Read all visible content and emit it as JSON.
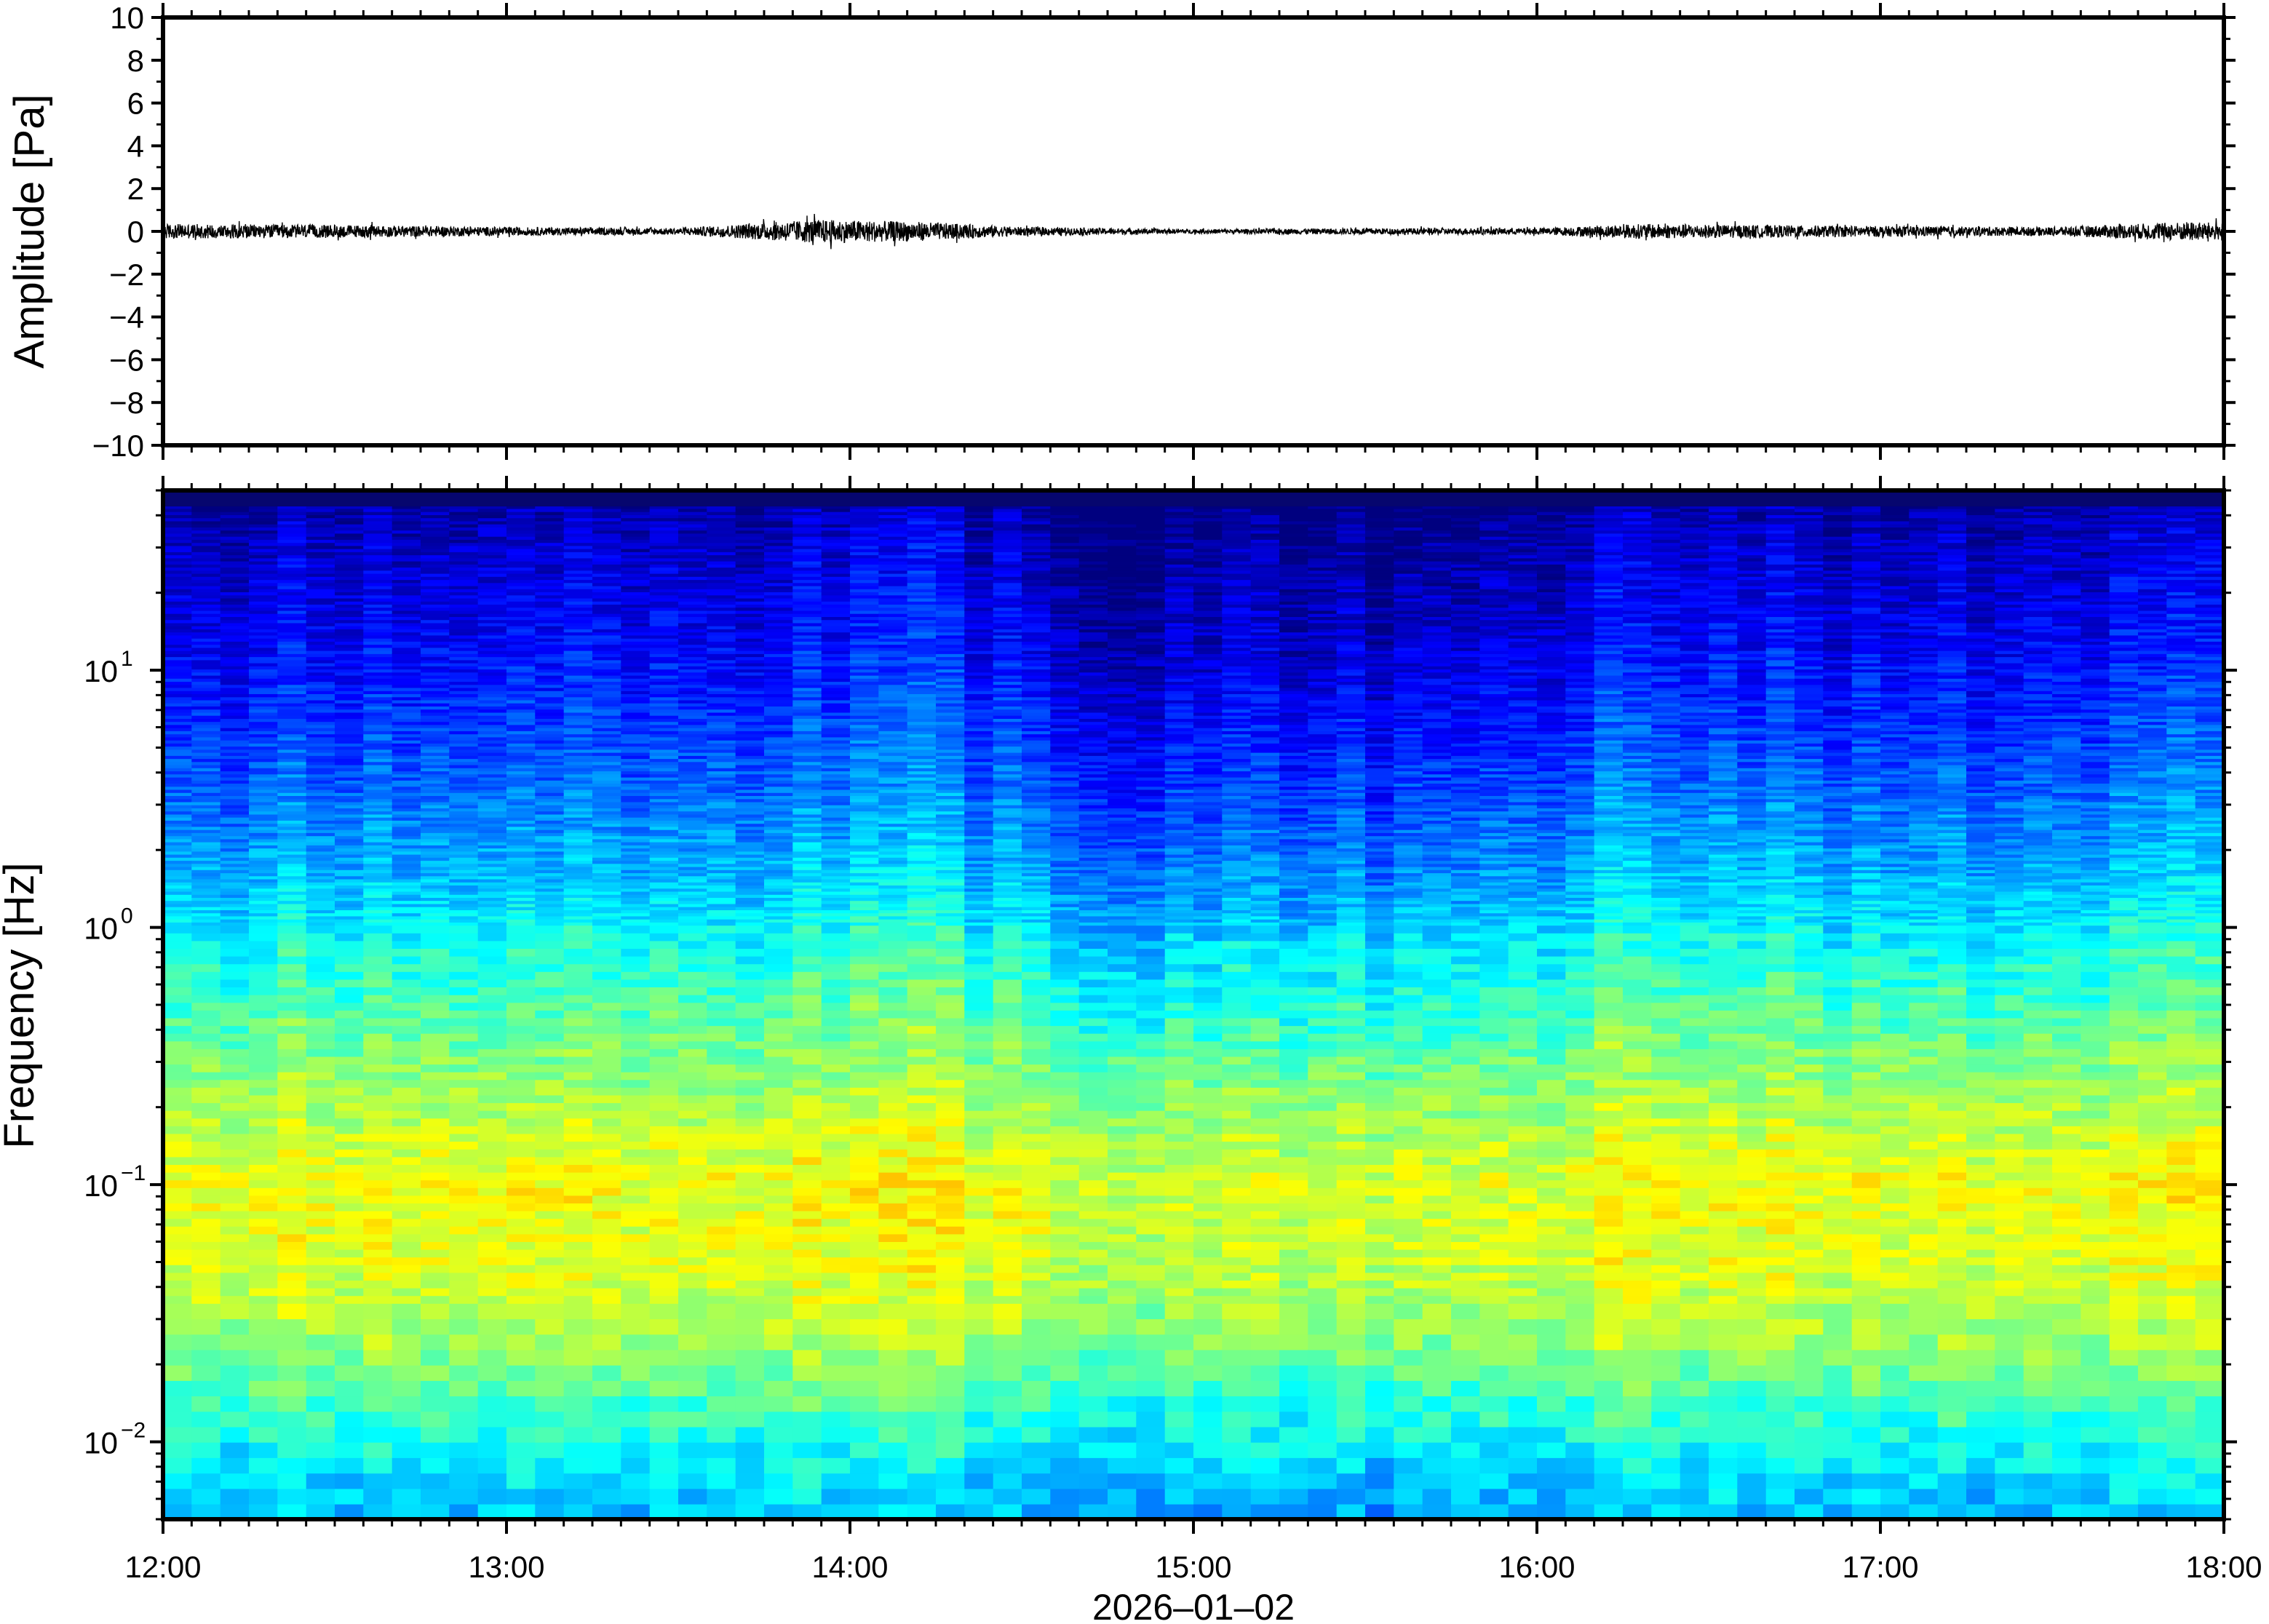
{
  "chart_data": [
    {
      "type": "line",
      "title": "",
      "ylabel": "Amplitude [Pa]",
      "xlabel": "",
      "ylim": [
        -10,
        10
      ],
      "yticks": [
        10,
        8,
        6,
        4,
        2,
        0,
        -2,
        -4,
        -6,
        -8,
        -10
      ],
      "ytick_labels": [
        "10",
        "8",
        "6",
        "4",
        "2",
        "0",
        "−2",
        "−4",
        "−6",
        "−8",
        "−10"
      ],
      "xlim": [
        "12:00",
        "18:00"
      ],
      "grid": false,
      "legend": "none",
      "series": [
        {
          "color": "#000000",
          "x_hours": [
            12.0,
            12.5,
            13.0,
            13.5,
            13.9,
            14.2,
            14.5,
            15.0,
            15.5,
            16.0,
            16.3,
            16.6,
            17.0,
            17.5,
            17.9,
            18.0
          ],
          "envelope_pa": [
            0.35,
            0.3,
            0.2,
            0.15,
            0.55,
            0.45,
            0.2,
            0.1,
            0.15,
            0.15,
            0.35,
            0.3,
            0.25,
            0.2,
            0.45,
            0.4
          ]
        }
      ]
    },
    {
      "type": "heatmap",
      "title": "",
      "ylabel": "Frequency [Hz]",
      "xlabel": "2026–01–02",
      "yscale": "log",
      "ylim": [
        0.005,
        50
      ],
      "yticks": [
        {
          "base": "10",
          "exp": "1",
          "value": 10
        },
        {
          "base": "10",
          "exp": "0",
          "value": 1
        },
        {
          "base": "10",
          "exp": "−1",
          "value": 0.1
        },
        {
          "base": "10",
          "exp": "−2",
          "value": 0.01
        }
      ],
      "xticks": [
        "12:00",
        "13:00",
        "14:00",
        "15:00",
        "16:00",
        "17:00",
        "18:00"
      ],
      "xlim": [
        "12:00",
        "18:00"
      ],
      "colormap": [
        "#00007f",
        "#0000ff",
        "#007fff",
        "#00ffff",
        "#7fff7f",
        "#ffff00",
        "#ff7f00",
        "#ff0000"
      ],
      "grid": false,
      "legend": "none"
    }
  ]
}
